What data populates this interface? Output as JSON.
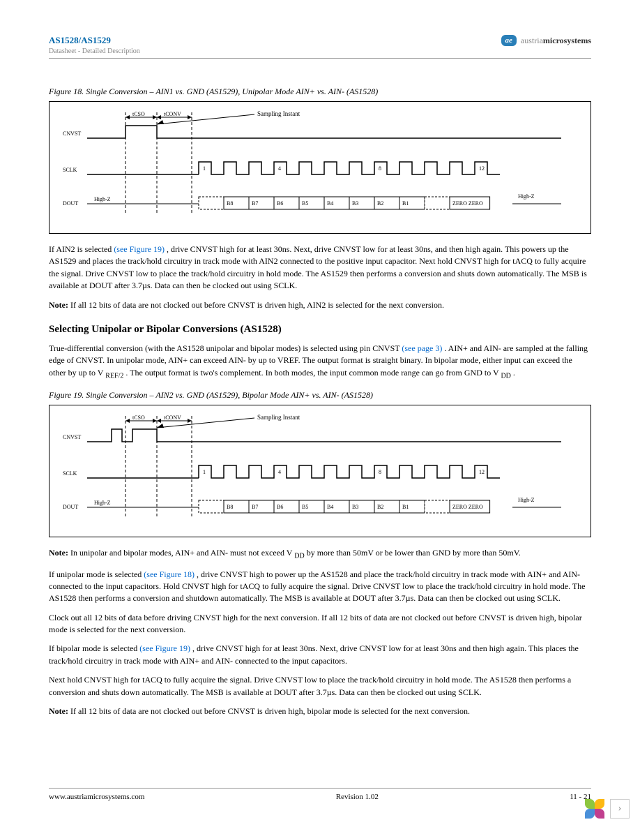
{
  "header": {
    "part": "AS1528/AS1529",
    "sub": "Datasheet - Detailed Description",
    "brand_badge": "ae",
    "brand_left": "austria",
    "brand_right": "microsystems"
  },
  "fig18": {
    "caption": "Figure 18.  Single Conversion – AIN1 vs. GND (AS1529), Unipolar Mode AIN+ vs. AIN- (AS1528)",
    "sampling_label": "Sampling Instant",
    "signals": [
      "CNVST",
      "SCLK",
      "DOUT"
    ],
    "t_labels": [
      "tCSO",
      "tCONV"
    ],
    "sclk_marks": [
      "1",
      "4",
      "8",
      "12"
    ],
    "dout_bits": [
      "B8",
      "B7",
      "B6",
      "B5",
      "B4",
      "B3",
      "B2",
      "B1",
      "",
      "ZERO ZERO"
    ],
    "highz": "High-Z"
  },
  "p1": {
    "text_a": "If AIN2 is selected ",
    "link": "(see Figure 19)",
    "text_b": ", drive CNVST high for at least 30ns. Next, drive CNVST low for at least 30ns, and then high again. This powers up the AS1529 and places the track/hold circuitry in track mode with AIN2 connected to the positive input capacitor. Next hold CNVST high for ",
    "tACQ": "tACQ",
    "text_c": " to fully acquire the signal. Drive CNVST low to place the track/hold circuitry in hold mode. The AS1529 then performs a conversion and shuts down automatically. The MSB is available at DOUT after 3.7µs. Data can then be clocked out using SCLK."
  },
  "note1": {
    "label": "Note:",
    "text": " If all 12 bits of data are not clocked out before CNVST is driven high, AIN2 is selected for the next conversion."
  },
  "h2": "Selecting Unipolar or Bipolar Conversions (AS1528)",
  "p2": {
    "text_a": "True-differential conversion (with the AS1528 unipolar and bipolar modes) is selected using pin CNVST ",
    "link": "(see page 3)",
    "text_b": ". AIN+ and AIN- are sampled at the falling edge of CNVST. In unipolar mode, AIN+ can exceed AIN- by up to VREF. The output format is straight binary. In bipolar mode, either input can exceed the other by up to V",
    "ref2": "REF/2",
    "text_c": ". The output format is two's complement. In both modes, the input common mode range can go from GND to V",
    "dd": "DD",
    "text_d": "."
  },
  "fig19": {
    "caption": "Figure 19.  Single Conversion – AIN2 vs. GND (AS1529), Bipolar Mode AIN+ vs. AIN- (AS1528)",
    "sampling_label": "Sampling Instant",
    "signals": [
      "CNVST",
      "SCLK",
      "DOUT"
    ],
    "t_labels": [
      "tCSO",
      "tCONV"
    ],
    "sclk_marks": [
      "1",
      "4",
      "8",
      "12"
    ],
    "dout_bits": [
      "B8",
      "B7",
      "B6",
      "B5",
      "B4",
      "B3",
      "B2",
      "B1",
      "",
      "ZERO ZERO"
    ],
    "highz": "High-Z"
  },
  "note2": {
    "label": "Note:",
    "text_a": " In unipolar and bipolar modes, AIN+ and AIN- must not exceed V",
    "dd": "DD",
    "text_b": " by more than 50mV or be lower than GND by more than 50mV."
  },
  "p3": {
    "text_a": "If unipolar mode is selected ",
    "link": "(see Figure 18)",
    "text_b": ", drive CNVST high to power up the AS1528 and place the track/hold circuitry in track mode with AIN+ and AIN- connected to the input capacitors. Hold CNVST high for ",
    "tACQ": "tACQ",
    "text_c": " to fully acquire the signal. Drive CNVST low to place the track/hold circuitry in hold mode. The AS1528 then performs a conversion and shutdown automatically. The MSB is available at DOUT after 3.7µs. Data can then be clocked out using SCLK."
  },
  "p4": "Clock out all 12 bits of data before driving CNVST high for the next conversion. If all 12 bits of data are not clocked out before CNVST is driven high, bipolar mode is selected for the next conversion.",
  "p5": {
    "text_a": "If bipolar mode is selected ",
    "link": "(see Figure 19)",
    "text_b": ", drive CNVST high for at least 30ns. Next, drive CNVST low for at least 30ns and then high again. This places the track/hold circuitry in track mode with AIN+ and AIN- connected to the input capacitors."
  },
  "p6": {
    "text_a": "Next hold CNVST high for ",
    "tACQ": "tACQ",
    "text_b": " to fully acquire the signal. Drive CNVST low to place the track/hold circuitry in hold mode. The AS1528 then performs a conversion and shuts down automatically. The MSB is available at DOUT after 3.7µs. Data can then be clocked out using SCLK."
  },
  "note3": {
    "label": "Note:",
    "text": " If all 12 bits of data are not clocked out before CNVST is driven high, bipolar mode is selected for the next conversion."
  },
  "footer": {
    "url": "www.austriamicrosystems.com",
    "rev": "Revision 1.02",
    "page": "11 - 21"
  },
  "colors": {
    "link": "#0066cc",
    "brand_blue": "#2a7fb8",
    "rule": "#999999"
  }
}
